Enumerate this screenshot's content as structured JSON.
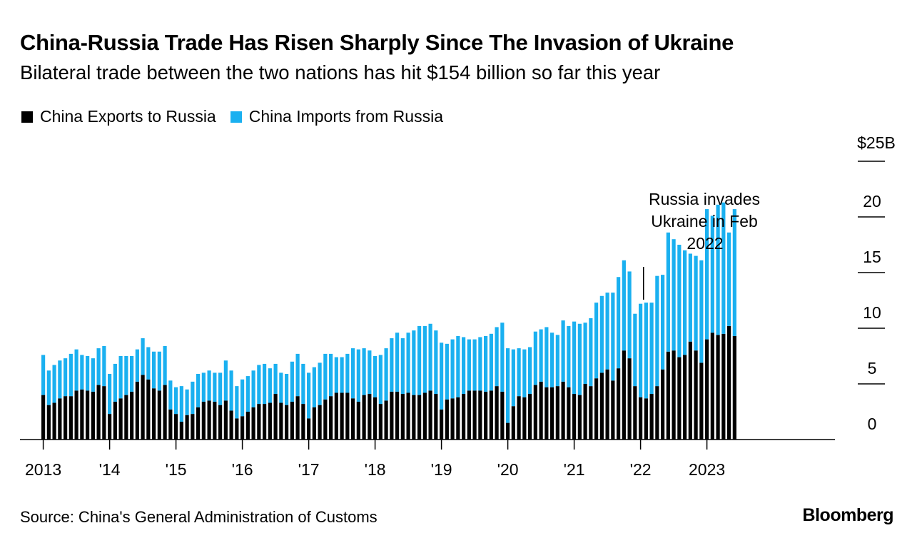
{
  "header": {
    "title": "China-Russia Trade Has Risen Sharply Since The Invasion of Ukraine",
    "subtitle": "Bilateral trade between the two nations has hit $154 billion so far this year"
  },
  "footer": {
    "source": "Source: China's General Administration of Customs",
    "logo": "Bloomberg"
  },
  "colors": {
    "exports": "#000000",
    "imports": "#1ab0f0",
    "gridline": "#000000"
  },
  "chart_data": {
    "type": "bar",
    "stacked": true,
    "title": "China-Russia Trade Has Risen Sharply Since The Invasion of Ukraine",
    "subtitle": "Bilateral trade between the two nations has hit $154 billion so far this year",
    "xlabel": "",
    "ylabel": "",
    "ylim": [
      0,
      25
    ],
    "yticks": [
      {
        "value": 0,
        "label": "0"
      },
      {
        "value": 5,
        "label": "5"
      },
      {
        "value": 10,
        "label": "10"
      },
      {
        "value": 15,
        "label": "15"
      },
      {
        "value": 20,
        "label": "20"
      },
      {
        "value": 25,
        "label": "$25B"
      }
    ],
    "year_labels": [
      "2013",
      "'14",
      "'15",
      "'16",
      "'17",
      "'18",
      "'19",
      "'20",
      "'21",
      "'22",
      "2023"
    ],
    "legend": [
      "China Exports to Russia",
      "China Imports from Russia"
    ],
    "annotation": {
      "lines": [
        "Russia invades",
        "Ukraine in Feb",
        "2022"
      ],
      "month_index": 109
    },
    "series": [
      {
        "name": "China Exports to Russia",
        "values": [
          4.0,
          3.1,
          3.3,
          3.7,
          3.9,
          3.9,
          4.4,
          4.5,
          4.4,
          4.3,
          4.9,
          4.8,
          2.3,
          3.4,
          3.7,
          4.0,
          4.3,
          5.2,
          5.8,
          5.4,
          4.6,
          4.4,
          4.9,
          2.7,
          2.3,
          1.6,
          2.2,
          2.3,
          2.9,
          3.4,
          3.5,
          3.4,
          3.1,
          3.5,
          2.6,
          1.9,
          2.1,
          2.5,
          2.9,
          3.2,
          3.2,
          3.3,
          4.1,
          3.3,
          3.1,
          3.4,
          3.9,
          3.2,
          1.9,
          2.9,
          3.1,
          3.6,
          3.9,
          4.2,
          4.2,
          4.2,
          3.7,
          3.4,
          4.0,
          4.1,
          3.8,
          3.2,
          3.5,
          4.3,
          4.3,
          4.1,
          4.2,
          4.0,
          4.0,
          4.2,
          4.4,
          4.1,
          2.7,
          3.6,
          3.7,
          3.8,
          4.1,
          4.4,
          4.4,
          4.4,
          4.3,
          4.4,
          4.8,
          4.3,
          1.5,
          3.0,
          3.9,
          3.8,
          4.1,
          4.9,
          5.2,
          4.7,
          4.7,
          4.8,
          5.2,
          4.7,
          4.1,
          4.0,
          5.0,
          4.8,
          5.5,
          6.0,
          6.3,
          5.3,
          6.4,
          8.0,
          7.3,
          4.8,
          3.8,
          3.7,
          4.1,
          4.8,
          6.3,
          7.9,
          8.0,
          7.4,
          7.6,
          8.8,
          8.0,
          6.9,
          9.0,
          9.6,
          9.4,
          9.5,
          10.2,
          9.3
        ]
      },
      {
        "name": "China Imports from Russia",
        "values": [
          3.6,
          3.1,
          3.4,
          3.4,
          3.4,
          3.8,
          3.7,
          3.1,
          3.1,
          3.0,
          3.3,
          3.6,
          3.6,
          3.4,
          3.8,
          3.5,
          3.2,
          2.9,
          3.3,
          2.9,
          3.3,
          3.5,
          3.5,
          2.6,
          2.4,
          3.2,
          2.3,
          2.9,
          3.0,
          2.6,
          2.7,
          2.6,
          2.9,
          3.6,
          3.6,
          2.9,
          3.3,
          3.2,
          3.3,
          3.5,
          3.6,
          3.1,
          2.7,
          2.7,
          2.8,
          3.6,
          3.8,
          3.6,
          4.1,
          3.6,
          3.8,
          4.1,
          3.8,
          3.2,
          3.2,
          3.5,
          4.5,
          4.7,
          4.2,
          3.9,
          3.7,
          4.4,
          4.7,
          4.8,
          5.3,
          5.0,
          5.4,
          5.8,
          6.2,
          6.0,
          6.0,
          5.7,
          6.0,
          5.0,
          5.3,
          5.5,
          5.1,
          4.6,
          4.6,
          4.8,
          5.0,
          5.1,
          5.3,
          6.2,
          6.7,
          5.1,
          4.3,
          4.3,
          4.2,
          4.8,
          4.7,
          5.4,
          4.9,
          4.6,
          5.5,
          5.5,
          6.5,
          6.4,
          5.5,
          6.1,
          6.8,
          6.9,
          6.9,
          7.9,
          8.2,
          8.1,
          7.8,
          6.5,
          8.4,
          8.6,
          8.2,
          9.9,
          8.5,
          10.7,
          10.0,
          10.1,
          9.4,
          7.9,
          8.5,
          9.2,
          11.7,
          10.5,
          11.7,
          11.8,
          8.4,
          11.4
        ]
      }
    ]
  }
}
